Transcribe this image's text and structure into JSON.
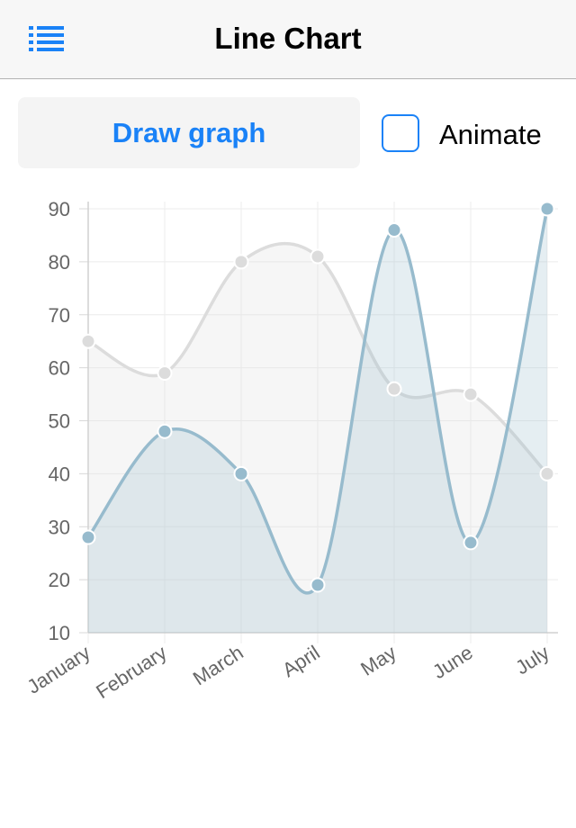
{
  "header": {
    "title": "Line Chart",
    "menu_icon": "list-icon"
  },
  "controls": {
    "draw_button_label": "Draw graph",
    "animate_label": "Animate",
    "animate_checked": false
  },
  "colors": {
    "accent": "#1a82f7",
    "series_blue": "#97bbcd",
    "series_gray": "#dcdcdc"
  },
  "chart_data": {
    "type": "line",
    "categories": [
      "January",
      "February",
      "March",
      "April",
      "May",
      "June",
      "July"
    ],
    "series": [
      {
        "values": [
          65,
          59,
          80,
          81,
          56,
          55,
          40
        ],
        "color": "#dcdcdc"
      },
      {
        "values": [
          28,
          48,
          40,
          19,
          86,
          27,
          90
        ],
        "color": "#97bbcd"
      }
    ],
    "yticks": [
      10,
      20,
      30,
      40,
      50,
      60,
      70,
      80,
      90
    ],
    "ylim": [
      10,
      90
    ],
    "grid": true,
    "smooth": true,
    "filled": true
  }
}
